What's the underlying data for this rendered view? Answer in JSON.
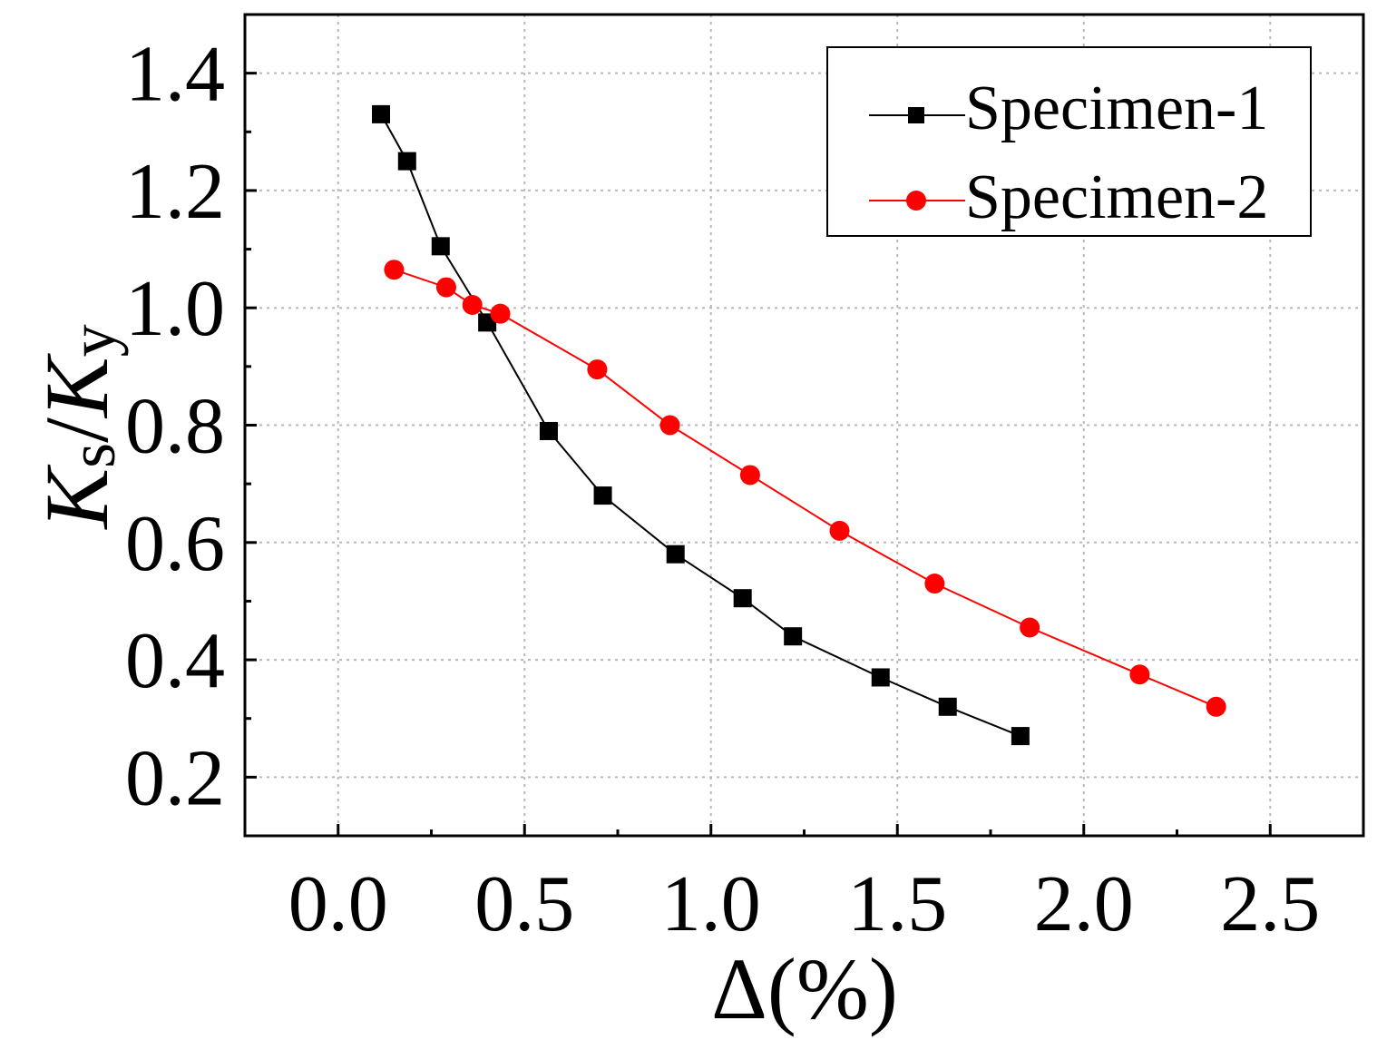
{
  "chart_data": {
    "type": "line",
    "title": "",
    "xlabel": "Δ(%)",
    "ylabel": {
      "k1": "K",
      "s": "s",
      "slash": "/",
      "k2": "K",
      "y": "y"
    },
    "xlim": [
      -0.25,
      2.75
    ],
    "ylim": [
      0.1,
      1.5
    ],
    "x_ticks": [
      0.0,
      0.5,
      1.0,
      1.5,
      2.0,
      2.5
    ],
    "x_tick_labels": [
      "0.0",
      "0.5",
      "1.0",
      "1.5",
      "2.0",
      "2.5"
    ],
    "y_ticks": [
      0.2,
      0.4,
      0.6,
      0.8,
      1.0,
      1.2,
      1.4
    ],
    "y_tick_labels": [
      "0.2",
      "0.4",
      "0.6",
      "0.8",
      "1.0",
      "1.2",
      "1.4"
    ],
    "grid": true,
    "legend_position": "top-right",
    "series": [
      {
        "name": "Specimen-1",
        "color": "#000000",
        "marker": "square",
        "x": [
          0.115,
          0.185,
          0.275,
          0.4,
          0.565,
          0.71,
          0.905,
          1.085,
          1.22,
          1.455,
          1.635,
          1.83
        ],
        "y": [
          1.33,
          1.25,
          1.105,
          0.975,
          0.79,
          0.68,
          0.58,
          0.505,
          0.44,
          0.37,
          0.32,
          0.27
        ]
      },
      {
        "name": "Specimen-2",
        "color": "#ff0000",
        "marker": "circle",
        "x": [
          0.15,
          0.29,
          0.36,
          0.435,
          0.695,
          0.89,
          1.105,
          1.345,
          1.6,
          1.855,
          2.15,
          2.355
        ],
        "y": [
          1.065,
          1.035,
          1.005,
          0.99,
          0.895,
          0.8,
          0.715,
          0.62,
          0.53,
          0.455,
          0.375,
          0.32
        ]
      }
    ]
  }
}
